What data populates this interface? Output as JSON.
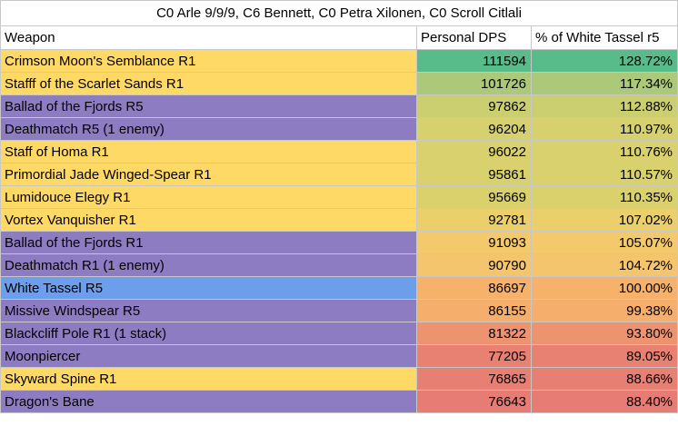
{
  "title": "C0 Arle 9/9/9, C6 Bennett, C0 Petra Xilonen, C0 Scroll Citlali",
  "headers": {
    "weapon": "Weapon",
    "dps": "Personal DPS",
    "pct": "% of White Tassel r5"
  },
  "colors": {
    "five_star": "#ffd966",
    "four_star": "#8e7cc3",
    "baseline": "#6d9eeb"
  },
  "rows": [
    {
      "weapon": "Crimson Moon's Semblance R1",
      "dps": "111594",
      "pct": "128.72%",
      "name_color": "#ffd966",
      "heat_color": "#57bb8a"
    },
    {
      "weapon": "Stafff of the Scarlet Sands R1",
      "dps": "101726",
      "pct": "117.34%",
      "name_color": "#ffd966",
      "heat_color": "#abc978"
    },
    {
      "weapon": "Ballad of the Fjords R5",
      "dps": "97862",
      "pct": "112.88%",
      "name_color": "#8e7cc3",
      "heat_color": "#cbcf70"
    },
    {
      "weapon": "Deathmatch R5 (1 enemy)",
      "dps": "96204",
      "pct": "110.97%",
      "name_color": "#8e7cc3",
      "heat_color": "#d6d06e"
    },
    {
      "weapon": "Staff of Homa R1",
      "dps": "96022",
      "pct": "110.76%",
      "name_color": "#ffd966",
      "heat_color": "#d8d16d"
    },
    {
      "weapon": "Primordial Jade Winged-Spear R1",
      "dps": "95861",
      "pct": "110.57%",
      "name_color": "#ffd966",
      "heat_color": "#d9d16d"
    },
    {
      "weapon": "Lumidouce Elegy R1",
      "dps": "95669",
      "pct": "110.35%",
      "name_color": "#ffd966",
      "heat_color": "#dad16c"
    },
    {
      "weapon": "Vortex Vanquisher R1",
      "dps": "92781",
      "pct": "107.02%",
      "name_color": "#ffd966",
      "heat_color": "#ebcf6a"
    },
    {
      "weapon": "Ballad of the Fjords R1",
      "dps": "91093",
      "pct": "105.07%",
      "name_color": "#8e7cc3",
      "heat_color": "#f4c96c"
    },
    {
      "weapon": "Deathmatch R1 (1 enemy)",
      "dps": "90790",
      "pct": "104.72%",
      "name_color": "#8e7cc3",
      "heat_color": "#f5c56d"
    },
    {
      "weapon": "White Tassel R5",
      "dps": "86697",
      "pct": "100.00%",
      "name_color": "#6d9eeb",
      "heat_color": "#f6b26b"
    },
    {
      "weapon": "Missive Windspear R5",
      "dps": "86155",
      "pct": "99.38%",
      "name_color": "#8e7cc3",
      "heat_color": "#f5ae6b"
    },
    {
      "weapon": "Blackcliff Pole R1 (1 stack)",
      "dps": "81322",
      "pct": "93.80%",
      "name_color": "#8e7cc3",
      "heat_color": "#ee936f"
    },
    {
      "weapon": "Moonpiercer",
      "dps": "77205",
      "pct": "89.05%",
      "name_color": "#8e7cc3",
      "heat_color": "#e88171"
    },
    {
      "weapon": "Skyward Spine R1",
      "dps": "76865",
      "pct": "88.66%",
      "name_color": "#ffd966",
      "heat_color": "#e77f72"
    },
    {
      "weapon": "Dragon's Bane",
      "dps": "76643",
      "pct": "88.40%",
      "name_color": "#8e7cc3",
      "heat_color": "#e67c73"
    }
  ]
}
